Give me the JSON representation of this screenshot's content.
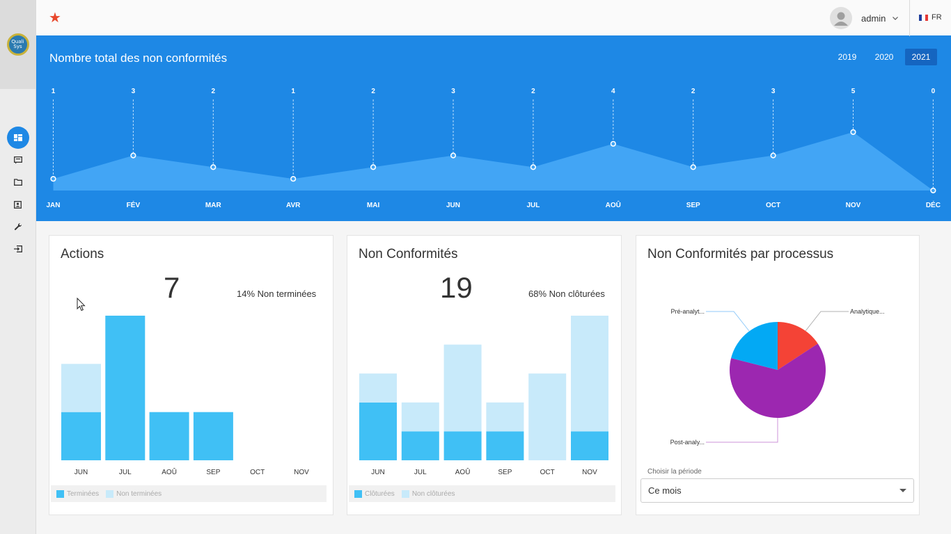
{
  "app": {
    "logo_text": "Quali Sys",
    "user": "admin",
    "language": "FR",
    "colors": {
      "primary": "#1e88e5",
      "favorite": "#e8472b"
    }
  },
  "sidebar": {
    "items": [
      {
        "icon": "dashboard-icon",
        "active": true
      },
      {
        "icon": "comment-icon",
        "active": false
      },
      {
        "icon": "folder-icon",
        "active": false
      },
      {
        "icon": "contact-icon",
        "active": false
      },
      {
        "icon": "wrench-icon",
        "active": false
      },
      {
        "icon": "logout-icon",
        "active": false
      }
    ]
  },
  "hero": {
    "title": "Nombre total des non conformités",
    "years": [
      "2019",
      "2020",
      "2021"
    ],
    "active_year": "2021"
  },
  "actions": {
    "title": "Actions",
    "total": "7",
    "percent": "14% Non terminées",
    "legend": [
      "Terminées",
      "Non terminées"
    ]
  },
  "nc": {
    "title": "Non Conformités",
    "total": "19",
    "percent": "68% Non clôturées",
    "legend": [
      "Clôturées",
      "Non clôturées"
    ]
  },
  "process": {
    "title": "Non Conformités par processus",
    "select_label": "Choisir la période",
    "select_value": "Ce mois"
  },
  "chart_data": [
    {
      "type": "area",
      "categories": [
        "JAN",
        "FÉV",
        "MAR",
        "AVR",
        "MAI",
        "JUN",
        "JUL",
        "AOÛ",
        "SEP",
        "OCT",
        "NOV",
        "DÉC"
      ],
      "values": [
        1,
        3,
        2,
        1,
        2,
        3,
        2,
        4,
        2,
        3,
        5,
        0
      ],
      "ylim": [
        0,
        5
      ],
      "color": "#42a5f5"
    },
    {
      "type": "bar",
      "stacked": true,
      "categories": [
        "JUN",
        "JUL",
        "AOÛ",
        "SEP",
        "OCT",
        "NOV"
      ],
      "series": [
        {
          "name": "Terminées",
          "values": [
            1,
            3,
            1,
            1,
            0,
            0
          ],
          "color": "#40c0f5"
        },
        {
          "name": "Non terminées",
          "values": [
            1,
            0,
            0,
            0,
            0,
            0
          ],
          "color": "#c8eafa"
        }
      ],
      "ylim": [
        0,
        3
      ]
    },
    {
      "type": "bar",
      "stacked": true,
      "categories": [
        "JUN",
        "JUL",
        "AOÛ",
        "SEP",
        "OCT",
        "NOV"
      ],
      "series": [
        {
          "name": "Clôturées",
          "values": [
            2,
            1,
            1,
            1,
            0,
            1
          ],
          "color": "#40c0f5"
        },
        {
          "name": "Non clôturées",
          "values": [
            1,
            1,
            3,
            1,
            3,
            4
          ],
          "color": "#c8eafa"
        }
      ],
      "ylim": [
        0,
        5
      ]
    },
    {
      "type": "pie",
      "slices": [
        {
          "name": "Analytique...",
          "value": 3,
          "color": "#f44336"
        },
        {
          "name": "Post-analy...",
          "value": 12,
          "color": "#9c27b0"
        },
        {
          "name": "Pré-analyt...",
          "value": 4,
          "color": "#03a9f4"
        }
      ]
    }
  ]
}
